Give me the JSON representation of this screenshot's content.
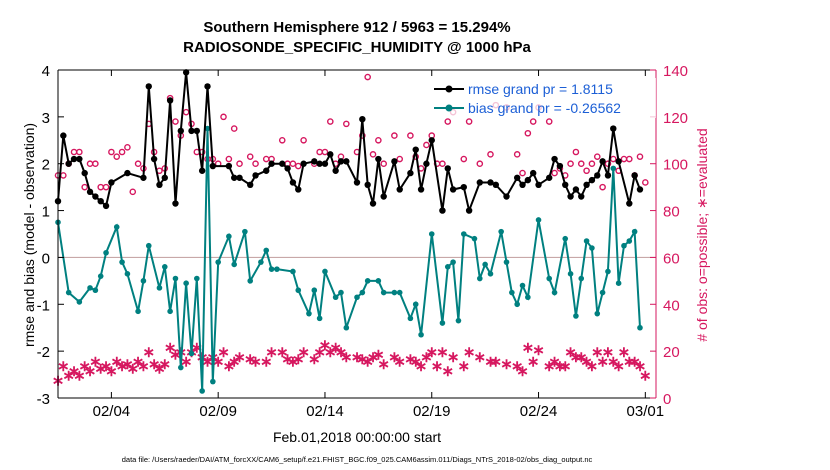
{
  "chart_data": {
    "type": "line",
    "title_line1": "Southern Hemisphere 912 / 5963 = 15.294%",
    "title_line2": "RADIOSONDE_SPECIFIC_HUMIDITY @ 1000 hPa",
    "xlabel": "Feb.01,2018 00:00:00 start",
    "ylabel_left": "rmse and bias (model - observation)",
    "ylabel_right": "# of obs: o=possible; ∗=evaluated",
    "footnote": "data file: /Users/raeder/DAI/ATM_forcXX/CAM6_setup/f.e21.FHIST_BGC.f09_025.CAM6assim.011/Diags_NTrS_2018-02/obs_diag_output.nc",
    "xlim": [
      1,
      29
    ],
    "ylim_left": [
      -3,
      4
    ],
    "ylim_right": [
      0,
      140
    ],
    "xticks": [
      3.5,
      8.5,
      13.5,
      18.5,
      23.5,
      28.5
    ],
    "xtick_labels": [
      "02/04",
      "02/09",
      "02/14",
      "02/19",
      "02/24",
      "03/01"
    ],
    "yticks_left": [
      -3,
      -2,
      -1,
      0,
      1,
      2,
      3,
      4
    ],
    "yticks_right": [
      0,
      20,
      40,
      60,
      80,
      100,
      120,
      140
    ],
    "zero_line": 0,
    "legend": {
      "position": "top-right",
      "entries": [
        {
          "label": "rmse grand pr = 1.8115",
          "color": "#000000"
        },
        {
          "label": "bias grand pr = -0.26562",
          "color": "#008080"
        }
      ]
    },
    "colors": {
      "rmse": "#000000",
      "bias": "#008080",
      "obs": "#d6175f",
      "zero": "#c8a8a8"
    },
    "series": [
      {
        "name": "rmse",
        "axis": "left",
        "x": [
          1.0,
          1.25,
          1.5,
          1.75,
          2.0,
          2.25,
          2.5,
          2.75,
          3.0,
          3.25,
          3.5,
          4.25,
          5.0,
          5.25,
          5.5,
          5.75,
          6.0,
          6.25,
          6.5,
          6.75,
          7.0,
          7.25,
          7.5,
          7.75,
          8.0,
          8.25,
          9.0,
          9.25,
          9.5,
          10.0,
          10.25,
          10.75,
          11.0,
          11.5,
          11.75,
          12.0,
          12.25,
          12.5,
          13.0,
          13.25,
          13.5,
          13.75,
          14.0,
          14.25,
          14.5,
          15.0,
          15.25,
          15.5,
          15.75,
          16.0,
          16.25,
          16.75,
          17.0,
          17.5,
          17.75,
          18.0,
          18.25,
          18.5,
          19.0,
          19.25,
          19.5,
          20.0,
          20.25,
          20.75,
          21.25,
          21.5,
          22.0,
          22.5,
          22.75,
          23.0,
          23.25,
          23.5,
          24.0,
          24.25,
          24.5,
          24.75,
          25.0,
          25.25,
          25.5,
          25.75,
          26.0,
          26.25,
          26.5,
          26.75,
          27.0,
          27.25,
          27.75,
          28.0,
          28.25
        ],
        "y": [
          1.2,
          2.6,
          2.0,
          2.1,
          2.1,
          1.8,
          1.4,
          1.3,
          1.2,
          1.1,
          1.6,
          1.8,
          1.7,
          3.65,
          2.1,
          1.55,
          1.7,
          3.35,
          1.15,
          2.7,
          3.95,
          2.7,
          2.7,
          1.85,
          3.65,
          1.95,
          1.95,
          1.7,
          1.7,
          1.55,
          1.75,
          1.85,
          2.0,
          2.0,
          1.9,
          1.6,
          1.45,
          2.0,
          2.05,
          2.0,
          2.0,
          2.2,
          1.85,
          2.05,
          2.05,
          1.6,
          2.95,
          1.55,
          1.15,
          2.1,
          1.3,
          2.05,
          1.45,
          1.8,
          2.3,
          1.45,
          2.0,
          2.5,
          1.0,
          1.9,
          1.45,
          1.5,
          1.0,
          1.6,
          1.6,
          1.55,
          1.3,
          1.7,
          1.55,
          1.65,
          1.8,
          1.55,
          1.7,
          2.1,
          1.95,
          1.55,
          1.3,
          1.45,
          1.3,
          1.55,
          1.65,
          1.75,
          2.05,
          1.75,
          2.75,
          2.05,
          1.15,
          1.75,
          1.45
        ]
      },
      {
        "name": "bias",
        "axis": "left",
        "x": [
          1.0,
          1.5,
          2.0,
          2.5,
          2.75,
          3.0,
          3.25,
          3.75,
          4.0,
          4.25,
          4.75,
          5.0,
          5.25,
          5.75,
          6.0,
          6.25,
          6.5,
          6.75,
          7.0,
          7.25,
          7.5,
          7.75,
          8.0,
          8.25,
          8.5,
          9.0,
          9.25,
          9.75,
          10.0,
          10.5,
          10.75,
          11.0,
          11.25,
          12.0,
          12.25,
          12.75,
          13.0,
          13.25,
          13.5,
          14.0,
          14.25,
          14.5,
          15.0,
          15.25,
          15.5,
          16.0,
          16.25,
          16.75,
          17.0,
          17.5,
          17.75,
          18.0,
          18.5,
          19.0,
          19.25,
          19.5,
          19.75,
          20.0,
          20.5,
          20.75,
          21.0,
          21.25,
          21.75,
          22.0,
          22.25,
          22.5,
          22.75,
          23.0,
          23.5,
          24.0,
          24.25,
          24.75,
          25.0,
          25.25,
          25.5,
          25.75,
          26.0,
          26.25,
          26.5,
          26.75,
          27.0,
          27.25,
          27.5,
          27.75,
          28.0,
          28.25
        ],
        "y": [
          0.75,
          -0.75,
          -0.95,
          -0.65,
          -0.7,
          -0.4,
          0.1,
          0.65,
          -0.1,
          -0.35,
          -1.15,
          -0.5,
          0.25,
          -0.65,
          -0.2,
          -1.15,
          -0.45,
          -2.35,
          -0.55,
          -2.05,
          -0.45,
          -2.85,
          2.75,
          -2.65,
          -0.1,
          0.45,
          -0.15,
          0.55,
          -0.5,
          -0.1,
          0.15,
          -0.25,
          -0.25,
          -0.3,
          -0.7,
          -1.2,
          -0.7,
          -1.3,
          -0.3,
          -0.85,
          -0.75,
          -1.5,
          -0.85,
          -0.75,
          -0.5,
          -0.5,
          -0.75,
          -0.75,
          -0.75,
          -1.3,
          -1.0,
          -1.65,
          0.5,
          -1.4,
          -0.2,
          -0.1,
          -1.35,
          0.5,
          0.4,
          -0.45,
          -0.15,
          -0.35,
          0.55,
          -0.1,
          -0.75,
          -1.0,
          -0.6,
          -0.85,
          0.8,
          -0.45,
          -0.75,
          0.4,
          -0.35,
          -1.25,
          -0.45,
          0.35,
          0.2,
          -1.2,
          -0.75,
          -0.3,
          1.9,
          -0.55,
          0.25,
          0.35,
          0.55,
          -1.5
        ]
      },
      {
        "name": "obs possible",
        "axis": "right",
        "marker": "o",
        "x": [
          1.0,
          1.25,
          1.5,
          1.75,
          2.0,
          2.25,
          2.5,
          2.75,
          3.0,
          3.25,
          3.5,
          3.75,
          4.0,
          4.25,
          4.5,
          4.75,
          5.0,
          5.25,
          5.5,
          5.75,
          6.0,
          6.25,
          6.5,
          6.75,
          7.0,
          7.25,
          7.5,
          7.75,
          8.0,
          8.25,
          8.5,
          8.75,
          9.0,
          9.25,
          9.5,
          10.0,
          10.25,
          10.75,
          11.0,
          11.5,
          11.75,
          12.0,
          12.25,
          12.5,
          13.0,
          13.25,
          13.5,
          13.75,
          14.0,
          14.25,
          14.5,
          15.0,
          15.25,
          15.5,
          15.75,
          16.0,
          16.25,
          16.75,
          17.0,
          17.5,
          17.75,
          18.0,
          18.25,
          18.5,
          18.75,
          19.0,
          19.25,
          19.5,
          20.0,
          20.25,
          20.75,
          21.25,
          21.5,
          22.0,
          22.5,
          22.75,
          23.0,
          23.25,
          23.5,
          24.0,
          24.25,
          24.5,
          24.75,
          25.0,
          25.25,
          25.5,
          25.75,
          26.0,
          26.25,
          26.5,
          26.75,
          27.0,
          27.25,
          27.5,
          27.75,
          28.0,
          28.25,
          28.5
        ],
        "y": [
          95,
          95,
          100,
          105,
          105,
          90,
          100,
          100,
          90,
          90,
          105,
          103,
          105,
          107,
          88,
          100,
          98,
          117,
          105,
          97,
          98,
          128,
          118,
          112,
          122,
          117,
          105,
          105,
          102,
          102,
          100,
          120,
          102,
          115,
          100,
          103,
          100,
          102,
          102,
          110,
          100,
          100,
          99,
          110,
          100,
          105,
          105,
          118,
          100,
          103,
          117,
          105,
          112,
          137,
          104,
          110,
          100,
          112,
          102,
          112,
          103,
          98,
          108,
          112,
          100,
          100,
          118,
          122,
          102,
          118,
          100,
          104,
          125,
          124,
          104,
          96,
          113,
          118,
          124,
          118,
          96,
          98,
          95,
          100,
          105,
          100,
          97,
          100,
          103,
          90,
          100,
          102,
          97,
          102,
          102,
          95,
          103,
          92
        ]
      },
      {
        "name": "obs evaluated",
        "axis": "right",
        "marker": "*",
        "x": [
          1.0,
          1.25,
          1.5,
          1.75,
          2.0,
          2.25,
          2.5,
          2.75,
          3.0,
          3.25,
          3.5,
          3.75,
          4.0,
          4.25,
          4.5,
          4.75,
          5.0,
          5.25,
          5.5,
          5.75,
          6.0,
          6.25,
          6.5,
          6.75,
          7.0,
          7.25,
          7.5,
          7.75,
          8.0,
          8.25,
          8.5,
          8.75,
          9.0,
          9.25,
          9.5,
          10.0,
          10.25,
          10.75,
          11.0,
          11.5,
          11.75,
          12.0,
          12.25,
          12.5,
          13.0,
          13.25,
          13.5,
          13.75,
          14.0,
          14.25,
          14.5,
          15.0,
          15.25,
          15.5,
          15.75,
          16.0,
          16.25,
          16.75,
          17.0,
          17.5,
          17.75,
          18.0,
          18.25,
          18.5,
          18.75,
          19.0,
          19.25,
          19.5,
          20.0,
          20.25,
          20.75,
          21.25,
          21.5,
          22.0,
          22.5,
          22.75,
          23.0,
          23.25,
          23.5,
          24.0,
          24.25,
          24.5,
          24.75,
          25.0,
          25.25,
          25.5,
          25.75,
          26.0,
          26.25,
          26.5,
          26.75,
          27.0,
          27.25,
          27.5,
          27.75,
          28.0,
          28.25,
          28.5
        ],
        "y": [
          8,
          14,
          10,
          12,
          10,
          14,
          12,
          16,
          13,
          14,
          12,
          16,
          14,
          15,
          13,
          16,
          14,
          20,
          15,
          13,
          15,
          22,
          19,
          20,
          16,
          20,
          22,
          18,
          16,
          18,
          16,
          20,
          14,
          16,
          18,
          17,
          16,
          16,
          20,
          20,
          17,
          16,
          17,
          20,
          17,
          20,
          23,
          20,
          22,
          20,
          18,
          18,
          17,
          16,
          18,
          19,
          15,
          18,
          16,
          17,
          16,
          14,
          18,
          20,
          14,
          20,
          12,
          18,
          14,
          20,
          18,
          16,
          16,
          15,
          14,
          12,
          22,
          16,
          21,
          14,
          16,
          14,
          14,
          20,
          18,
          18,
          16,
          14,
          20,
          16,
          20,
          16,
          14,
          20,
          16,
          16,
          14,
          10
        ]
      }
    ]
  }
}
